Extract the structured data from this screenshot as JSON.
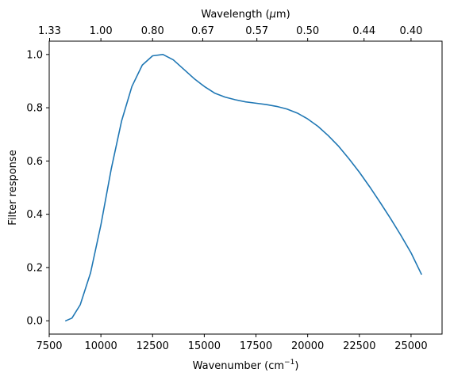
{
  "chart_data": {
    "type": "line",
    "xlabel": "Wavenumber (cm",
    "xlabel_exp": "−1",
    "xlabel_close": ")",
    "ylabel": "Filter response",
    "top_xlabel": "Wavelength (",
    "top_xlabel_unit_mu": "μ",
    "top_xlabel_unit_rest": "m)",
    "xlim": [
      7500,
      26500
    ],
    "ylim": [
      -0.05,
      1.05
    ],
    "grid": false,
    "x_ticks": [
      7500,
      10000,
      12500,
      15000,
      17500,
      20000,
      22500,
      25000
    ],
    "x_tick_labels": [
      "7500",
      "10000",
      "12500",
      "15000",
      "17500",
      "20000",
      "22500",
      "25000"
    ],
    "y_ticks": [
      0.0,
      0.2,
      0.4,
      0.6,
      0.8,
      1.0
    ],
    "y_tick_labels": [
      "0.0",
      "0.2",
      "0.4",
      "0.6",
      "0.8",
      "1.0"
    ],
    "top_ticks_wavelength_um": [
      1.33,
      1.0,
      0.8,
      0.67,
      0.57,
      0.5,
      0.44,
      0.4
    ],
    "top_tick_labels": [
      "1.33",
      "1.00",
      "0.80",
      "0.67",
      "0.57",
      "0.50",
      "0.44",
      "0.40"
    ],
    "series": [
      {
        "color": "#1f77b4",
        "x": [
          8300,
          8600,
          9000,
          9500,
          10000,
          10500,
          11000,
          11500,
          12000,
          12500,
          13000,
          13500,
          14000,
          14500,
          15000,
          15500,
          16000,
          16500,
          17000,
          17500,
          18000,
          18500,
          19000,
          19500,
          20000,
          20500,
          21000,
          21500,
          22000,
          22500,
          23000,
          23500,
          24000,
          24500,
          25000,
          25500
        ],
        "y": [
          0.0,
          0.01,
          0.06,
          0.18,
          0.36,
          0.57,
          0.75,
          0.88,
          0.96,
          0.995,
          1.0,
          0.98,
          0.945,
          0.91,
          0.88,
          0.855,
          0.84,
          0.83,
          0.822,
          0.817,
          0.812,
          0.805,
          0.795,
          0.78,
          0.758,
          0.73,
          0.695,
          0.655,
          0.608,
          0.558,
          0.503,
          0.445,
          0.385,
          0.322,
          0.255,
          0.175
        ]
      }
    ]
  }
}
